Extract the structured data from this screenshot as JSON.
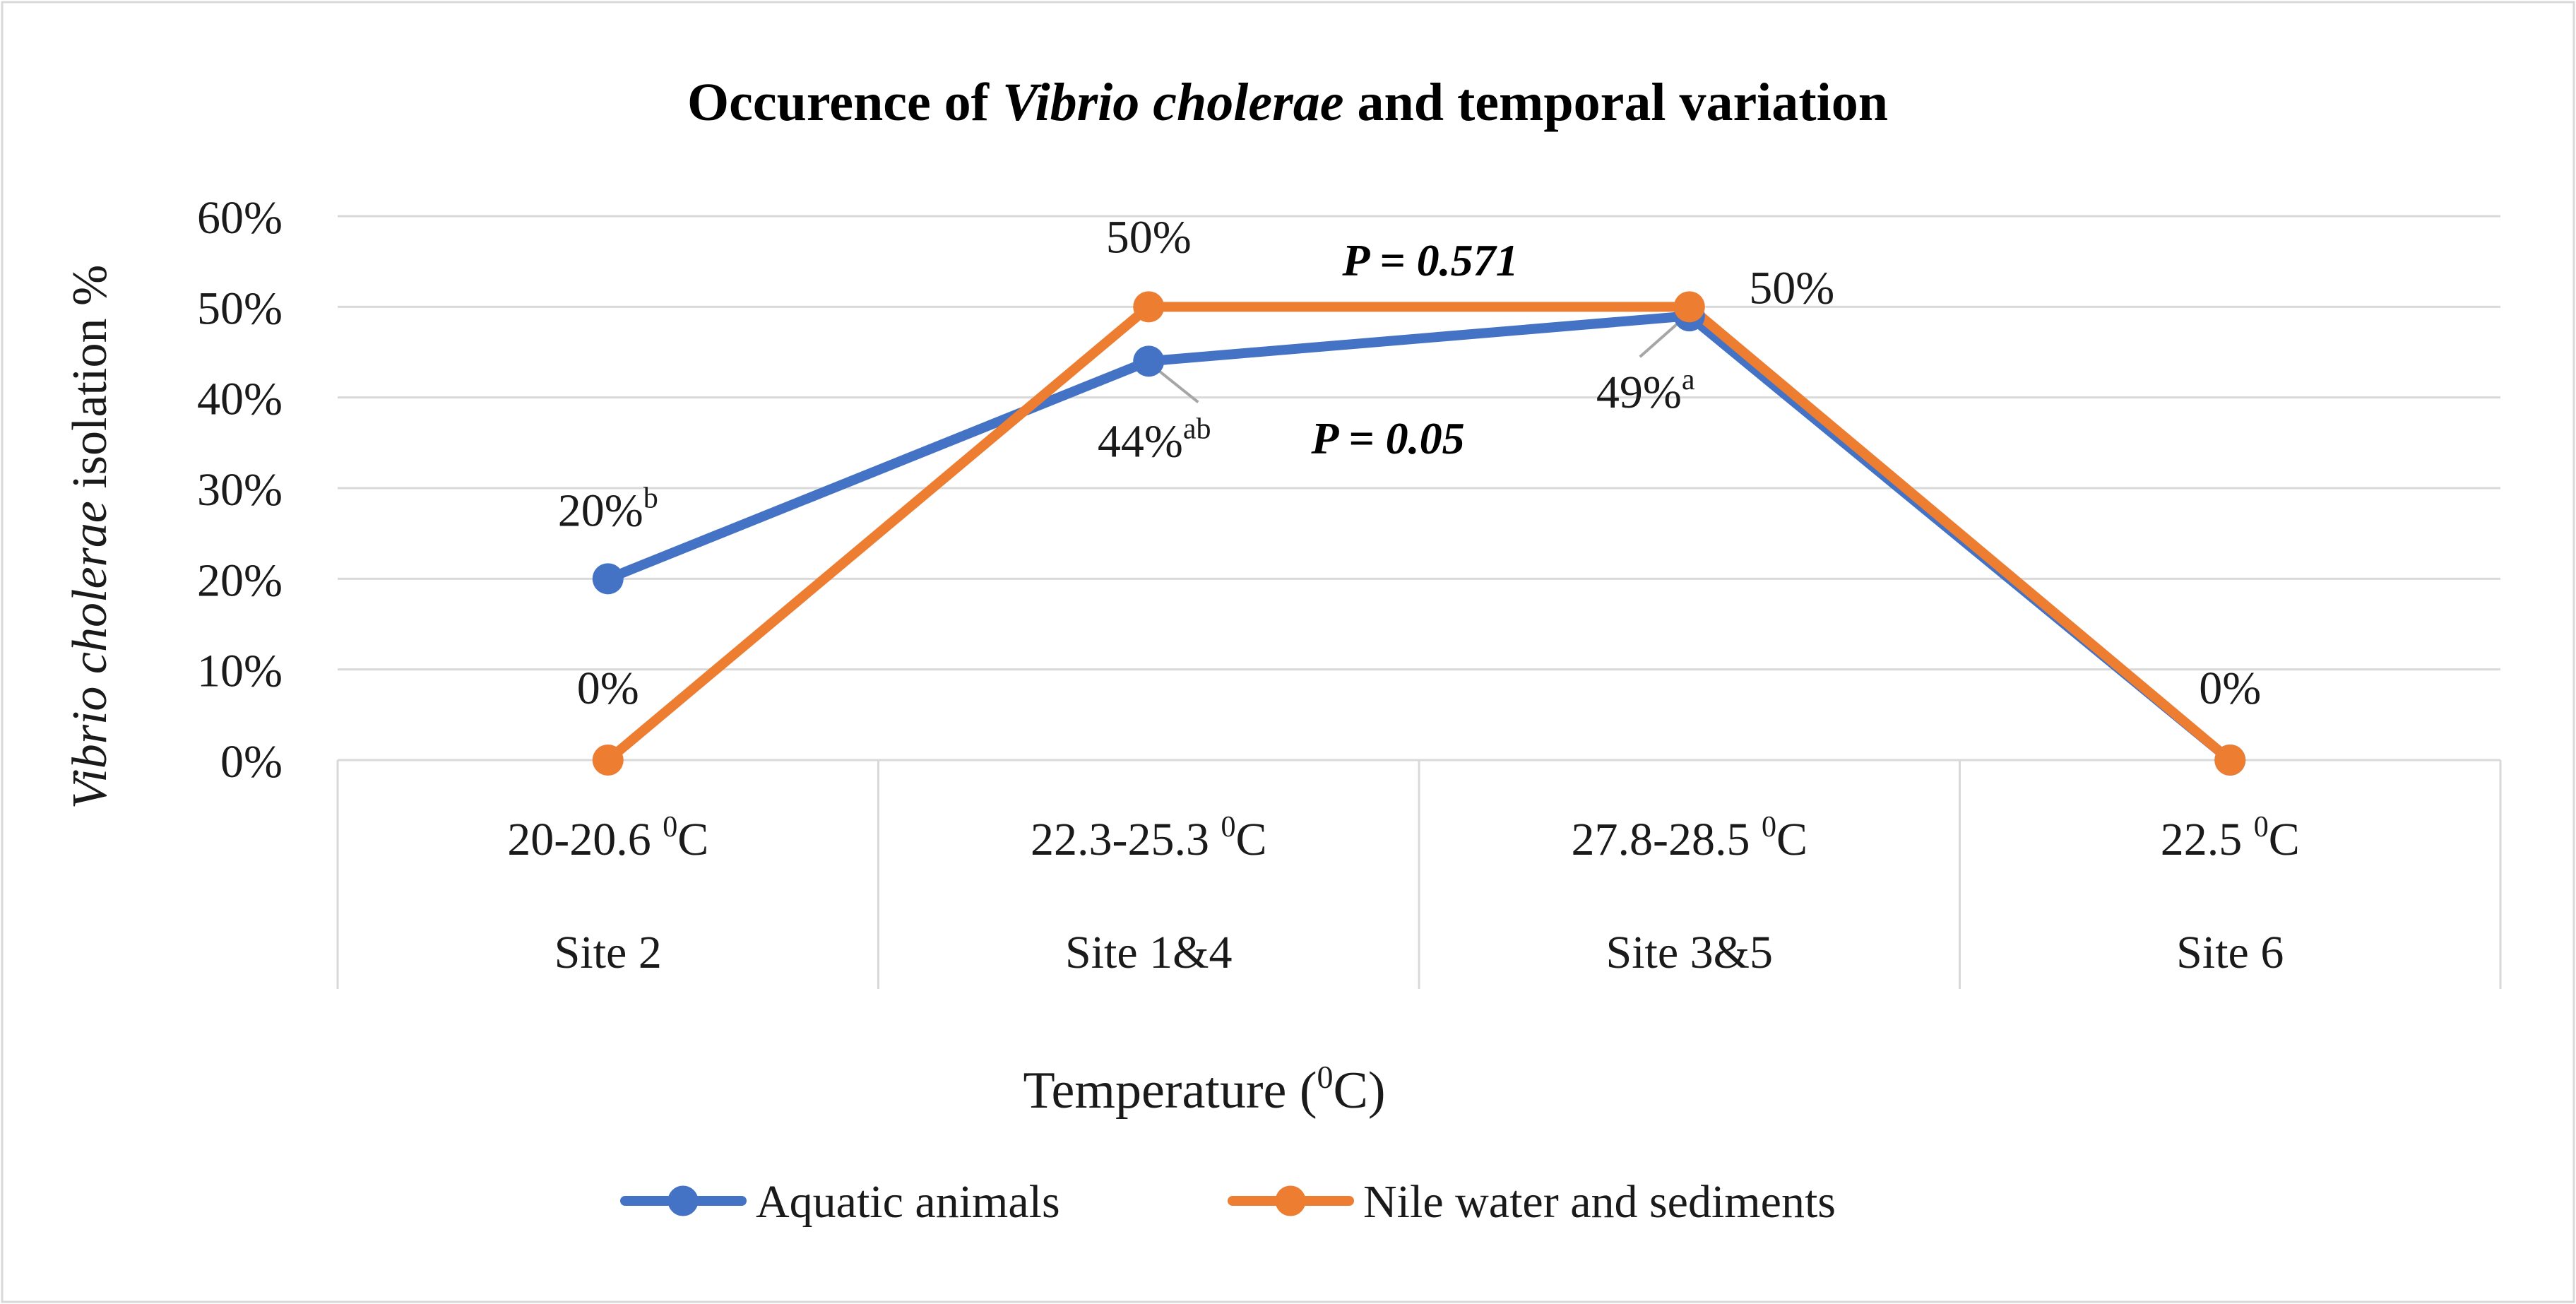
{
  "colors": {
    "aquatic": "#4472C4",
    "nile": "#ED7D31",
    "grid": "#D9D9D9",
    "text": "#1a1a1a",
    "leader": "#A6A6A6"
  },
  "title": {
    "prefix": "Occurence of ",
    "italic": "Vibrio cholerae",
    "suffix": " and temporal variation"
  },
  "y_axis": {
    "label_italic": "Vibrio cholerae",
    "label_rest": " isolation %",
    "ticks": [
      "0%",
      "10%",
      "20%",
      "30%",
      "40%",
      "50%",
      "60%"
    ]
  },
  "x_axis": {
    "title_pre": "Temperature (",
    "title_sup": "0",
    "title_post": "C)",
    "temps": [
      {
        "value": "20-20.6 ",
        "sup": "0",
        "unit": "C"
      },
      {
        "value": "22.3-25.3 ",
        "sup": "0",
        "unit": "C"
      },
      {
        "value": "27.8-28.5 ",
        "sup": "0",
        "unit": "C"
      },
      {
        "value": "22.5 ",
        "sup": "0",
        "unit": "C"
      }
    ],
    "sites": [
      "Site 2",
      "Site 1&4",
      "Site 3&5",
      "Site 6"
    ]
  },
  "legend": {
    "aquatic": "Aquatic animals",
    "nile": "Nile water and sediments"
  },
  "annotations": {
    "p_nile": "P = 0.571",
    "p_aquatic": "P = 0.05"
  },
  "point_labels": {
    "aquatic": [
      {
        "text": "20%",
        "sup": "b"
      },
      {
        "text": "44%",
        "sup": "ab"
      },
      {
        "text": "49%",
        "sup": "a"
      }
    ],
    "nile": [
      {
        "text": "0%"
      },
      {
        "text": "50%"
      },
      {
        "text": "50%"
      },
      {
        "text": "0%"
      }
    ]
  },
  "chart_data": {
    "type": "line",
    "title": "Occurence of Vibrio cholerae and temporal variation",
    "xlabel": "Temperature (0C)",
    "ylabel": "Vibrio cholerae isolation %",
    "categories": [
      "20-20.6 0C / Site 2",
      "22.3-25.3 0C / Site 1&4",
      "27.8-28.5 0C / Site 3&5",
      "22.5 0C / Site 6"
    ],
    "ylim": [
      0,
      60
    ],
    "grid": true,
    "legend_position": "bottom",
    "series": [
      {
        "name": "Aquatic animals",
        "values": [
          20,
          44,
          49,
          0
        ]
      },
      {
        "name": "Nile water and sediments",
        "values": [
          0,
          50,
          50,
          0
        ]
      }
    ]
  }
}
